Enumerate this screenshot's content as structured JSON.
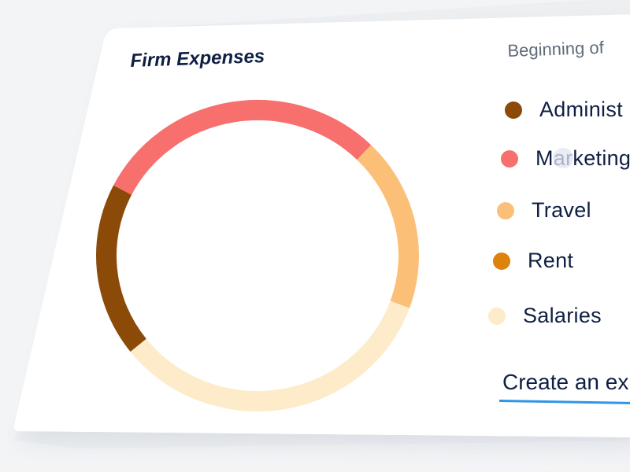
{
  "card": {
    "title": "Firm Expenses",
    "period_label": "Beginning of",
    "create_link": "Create an ex"
  },
  "legend": [
    {
      "label": "Administ",
      "color": "#8b4a08"
    },
    {
      "label": "Marketing",
      "color": "#f7706e"
    },
    {
      "label": "Travel",
      "color": "#fbbf77"
    },
    {
      "label": "Rent",
      "color": "#dd820a"
    },
    {
      "label": "Salaries",
      "color": "#fdebc9"
    }
  ],
  "colors": {
    "accent_underline": "#2f95e8",
    "title_text": "#0f1f44",
    "card_bg": "#ffffff"
  },
  "chart_data": {
    "type": "pie",
    "style": "donut",
    "categories": [
      "Administ",
      "Marketing",
      "Travel",
      "Rent",
      "Salaries"
    ],
    "values": [
      18,
      30,
      18,
      0,
      34
    ],
    "colors": [
      "#8b4a08",
      "#f7706e",
      "#fbbf77",
      "#dd820a",
      "#fdebc9"
    ],
    "title": "Firm Expenses",
    "legend_position": "right"
  }
}
